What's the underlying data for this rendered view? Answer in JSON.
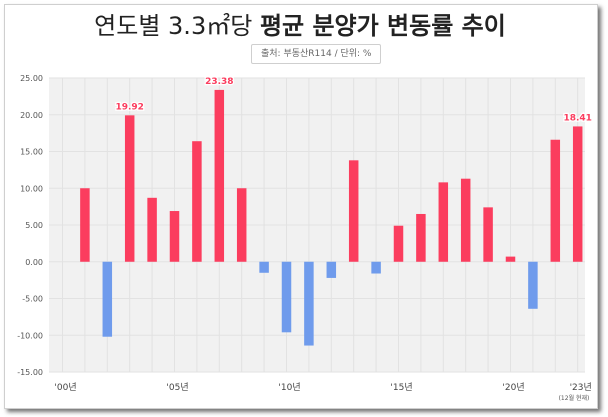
{
  "title": {
    "light": "연도별 3.3㎡당",
    "bold": "평균 분양가 변동률 추이"
  },
  "source_label": "출처: 부동산R114 / 단위: %",
  "colors": {
    "positive": "#fb3d5e",
    "negative": "#6f9bec",
    "plot_bg": "#f1f1f1",
    "grid": "#e2e2e2",
    "label_text": "#fb3d5e"
  },
  "chart_data": {
    "type": "bar",
    "title": "연도별 3.3㎡당 평균 분양가 변동률 추이",
    "xlabel": "",
    "ylabel": "%",
    "ylim": [
      -15,
      25
    ],
    "yticks": [
      "25.00",
      "20.00",
      "15.00",
      "10.00",
      "5.00",
      "0.00",
      "-5.00",
      "-10.00",
      "-15.00"
    ],
    "ytick_values": [
      25,
      20,
      15,
      10,
      5,
      0,
      -5,
      -10,
      -15
    ],
    "categories": [
      "'00",
      "'01",
      "'02",
      "'03",
      "'04",
      "'05",
      "'06",
      "'07",
      "'08",
      "'09",
      "'10",
      "'11",
      "'12",
      "'13",
      "'14",
      "'15",
      "'16",
      "'17",
      "'18",
      "'19",
      "'20",
      "'21",
      "'22",
      "'23"
    ],
    "values": [
      null,
      10.0,
      -10.2,
      19.92,
      8.7,
      6.9,
      16.4,
      23.38,
      10.0,
      -1.5,
      -9.6,
      -11.4,
      -2.2,
      13.8,
      -1.6,
      4.9,
      6.5,
      10.8,
      11.3,
      7.4,
      0.7,
      -6.4,
      16.6,
      18.41
    ],
    "xtick_labels": [
      {
        "index": 0,
        "text": "'00년"
      },
      {
        "index": 5,
        "text": "'05년"
      },
      {
        "index": 10,
        "text": "'10년"
      },
      {
        "index": 15,
        "text": "'15년"
      },
      {
        "index": 20,
        "text": "'20년"
      },
      {
        "index": 23,
        "text": "'23년"
      }
    ],
    "data_labels": [
      {
        "index": 3,
        "text": "19.92"
      },
      {
        "index": 7,
        "text": "23.38"
      },
      {
        "index": 23,
        "text": "18.41"
      }
    ],
    "note": "(12월 현재)"
  }
}
